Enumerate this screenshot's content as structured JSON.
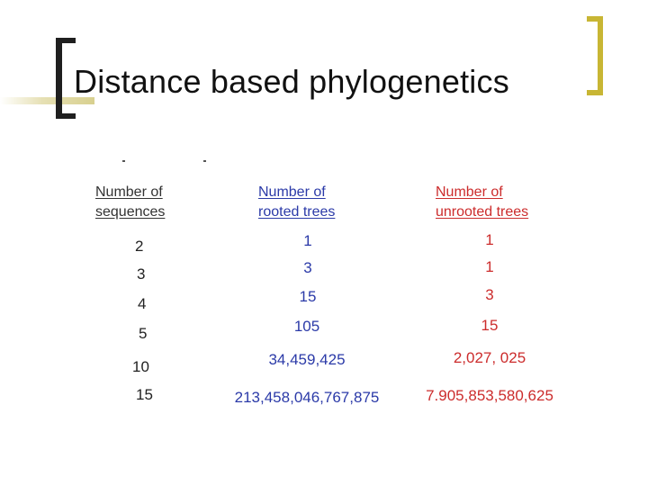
{
  "slide": {
    "title": "Distance based phylogenetics"
  },
  "table": {
    "headers": {
      "sequences": [
        "Number of",
        "sequences"
      ],
      "rooted": [
        "Number of",
        "rooted trees"
      ],
      "unrooted": [
        "Number of",
        "unrooted trees"
      ]
    },
    "rows": [
      {
        "sequences": "2",
        "rooted": "1",
        "unrooted": "1"
      },
      {
        "sequences": "3",
        "rooted": "3",
        "unrooted": "1"
      },
      {
        "sequences": "4",
        "rooted": "15",
        "unrooted": "3"
      },
      {
        "sequences": "5",
        "rooted": "105",
        "unrooted": "15"
      },
      {
        "sequences": "10",
        "rooted": "34,459,425",
        "unrooted": "2,027, 025"
      },
      {
        "sequences": "15",
        "rooted": "213,458,046,767,875",
        "unrooted": "7.905,853,580,625"
      }
    ]
  },
  "colors": {
    "accent_gold": "#c8b634",
    "rooted_blue": "#2b3aa8",
    "unrooted_red": "#cc2c2c"
  }
}
